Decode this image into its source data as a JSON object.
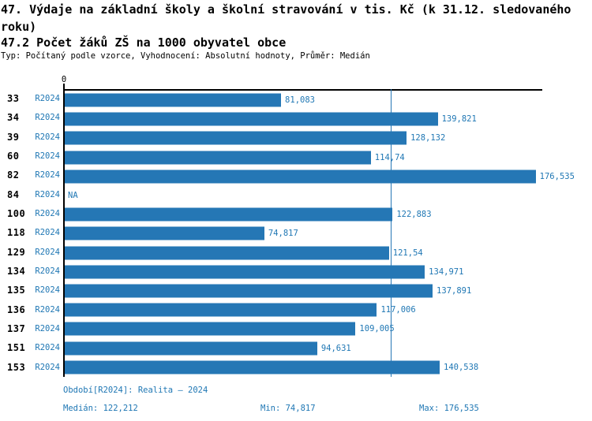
{
  "header": {
    "title": "47. Výdaje na základní školy a školní stravování v tis. Kč (k 31.12. sledovaného roku)",
    "subtitle": "47.2 Počet žáků ZŠ na 1000 obyvatel obce",
    "meta": "Typ: Počítaný podle vzorce, Vyhodnocení: Absolutní hodnoty, Průměr: Medián"
  },
  "colors": {
    "bar": "#2577B5",
    "blue_text": "#1F77B4",
    "axis": "#000000",
    "median_line": "#2577B5",
    "background": "#ffffff"
  },
  "chart_data": {
    "type": "bar",
    "orientation": "horizontal",
    "title": "47. Výdaje na základní školy a školní stravování v tis. Kč (k 31.12. sledovaného roku)",
    "subtitle": "47.2 Počet žáků ZŠ na 1000 obyvatel obce",
    "categories": [
      "33",
      "34",
      "39",
      "60",
      "82",
      "84",
      "100",
      "118",
      "129",
      "134",
      "135",
      "136",
      "137",
      "151",
      "153"
    ],
    "series_label": "R2024",
    "values": [
      81.083,
      139.821,
      128.132,
      114.74,
      176.535,
      null,
      122.883,
      74.817,
      121.54,
      134.971,
      137.891,
      117.006,
      109.005,
      94.631,
      140.538
    ],
    "value_labels": [
      "81,083",
      "139,821",
      "128,132",
      "114,74",
      "176,535",
      "NA",
      "122,883",
      "74,817",
      "121,54",
      "134,971",
      "137,891",
      "117,006",
      "109,005",
      "94,631",
      "140,538"
    ],
    "zero_tick_label": "0",
    "xlabel": "",
    "ylabel": "",
    "xlim": [
      0,
      179
    ],
    "median_value": 122.212,
    "min_value": 74.817,
    "max_value": 176.535,
    "grid": false,
    "legend": false
  },
  "footer": {
    "period": "Období[R2024]: Realita – 2024",
    "median": "Medián: 122,212",
    "min": "Min: 74,817",
    "max": "Max: 176,535"
  }
}
